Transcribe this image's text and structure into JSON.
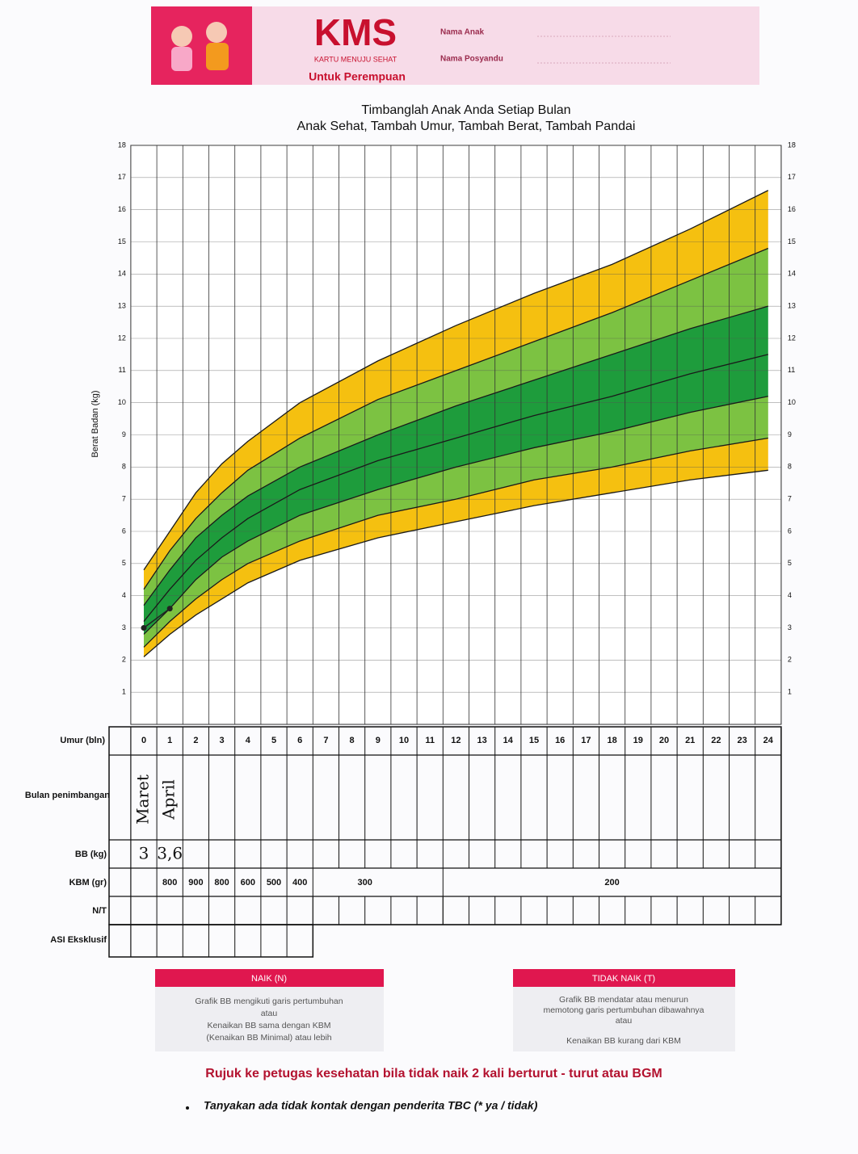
{
  "header": {
    "logo": "KMS",
    "logo_subtitle": "KARTU MENUJU SEHAT",
    "subtitle": "Untuk Perempuan",
    "fields": [
      "Nama Anak",
      "Nama Posyandu"
    ]
  },
  "chart_data": {
    "type": "line",
    "title": "Timbanglah Anak Anda Setiap Bulan",
    "subtitle": "Anak Sehat, Tambah Umur, Tambah Berat, Tambah Pandai",
    "y_label": "Berat Badan (kg)",
    "x_label": "Umur (bln)",
    "xlim": [
      0,
      24
    ],
    "xticks": [
      0,
      1,
      2,
      3,
      4,
      5,
      6,
      7,
      8,
      9,
      10,
      11,
      12,
      13,
      14,
      15,
      16,
      17,
      18,
      19,
      20,
      21,
      22,
      23,
      24
    ],
    "ylim": [
      0,
      18
    ],
    "yticks": [
      1,
      2,
      3,
      4,
      5,
      6,
      7,
      8,
      9,
      10,
      11,
      12,
      13,
      14,
      15,
      16,
      17,
      18
    ],
    "grid": true,
    "x": [
      0,
      1,
      2,
      3,
      4,
      6,
      9,
      12,
      15,
      18,
      21,
      24
    ],
    "curves": [
      {
        "values": [
          2.1,
          2.8,
          3.4,
          3.9,
          4.4,
          5.1,
          5.8,
          6.3,
          6.8,
          7.2,
          7.6,
          7.9
        ]
      },
      {
        "values": [
          2.4,
          3.2,
          3.9,
          4.5,
          5.0,
          5.7,
          6.5,
          7.0,
          7.6,
          8.0,
          8.5,
          8.9
        ]
      },
      {
        "values": [
          2.8,
          3.6,
          4.5,
          5.2,
          5.7,
          6.5,
          7.3,
          8.0,
          8.6,
          9.1,
          9.7,
          10.2
        ]
      },
      {
        "values": [
          3.2,
          4.2,
          5.1,
          5.8,
          6.4,
          7.3,
          8.2,
          8.9,
          9.6,
          10.2,
          10.9,
          11.5
        ]
      },
      {
        "values": [
          3.7,
          4.8,
          5.8,
          6.5,
          7.1,
          8.0,
          9.0,
          9.9,
          10.7,
          11.5,
          12.3,
          13.0
        ]
      },
      {
        "values": [
          4.2,
          5.4,
          6.4,
          7.2,
          7.9,
          8.9,
          10.1,
          11.0,
          11.9,
          12.8,
          13.8,
          14.8
        ]
      },
      {
        "values": [
          4.8,
          6.0,
          7.2,
          8.1,
          8.8,
          10.0,
          11.3,
          12.4,
          13.4,
          14.3,
          15.4,
          16.6
        ]
      }
    ],
    "band_colors": [
      "#f5c010",
      "#7cc242",
      "#1e9c3c",
      "#1e9c3c",
      "#7cc242",
      "#f5c010"
    ],
    "line_color": "#1a1a1a",
    "points": {
      "x": [
        0,
        1
      ],
      "values": [
        3,
        3.6
      ],
      "value_labels": [
        "3",
        "3,6"
      ],
      "color": "#222"
    }
  },
  "table": {
    "row_labels": [
      "Bulan penimbangan",
      "BB (kg)",
      "KBM (gr)",
      "N/T",
      "ASI Eksklusif"
    ],
    "months_weighed": [
      "Maret",
      "April"
    ],
    "kbm": [
      "800",
      "900",
      "800",
      "600",
      "500",
      "400",
      "300",
      "200"
    ]
  },
  "legend": {
    "naik": {
      "title": "NAIK (N)",
      "lines": [
        "Grafik BB mengikuti garis pertumbuhan",
        "atau",
        "Kenaikan BB sama dengan KBM",
        "(Kenaikan BB Minimal) atau lebih"
      ]
    },
    "tidak_naik": {
      "title": "TIDAK NAIK (T)",
      "lines": [
        "Grafik BB mendatar atau menurun",
        "memotong garis pertumbuhan dibawahnya",
        "atau",
        "Kenaikan BB kurang dari KBM"
      ]
    }
  },
  "footer": {
    "referral": "Rujuk ke petugas kesehatan bila tidak naik 2 kali berturut - turut atau BGM",
    "note": "Tanyakan ada tidak kontak dengan penderita TBC (* ya / tidak)"
  }
}
